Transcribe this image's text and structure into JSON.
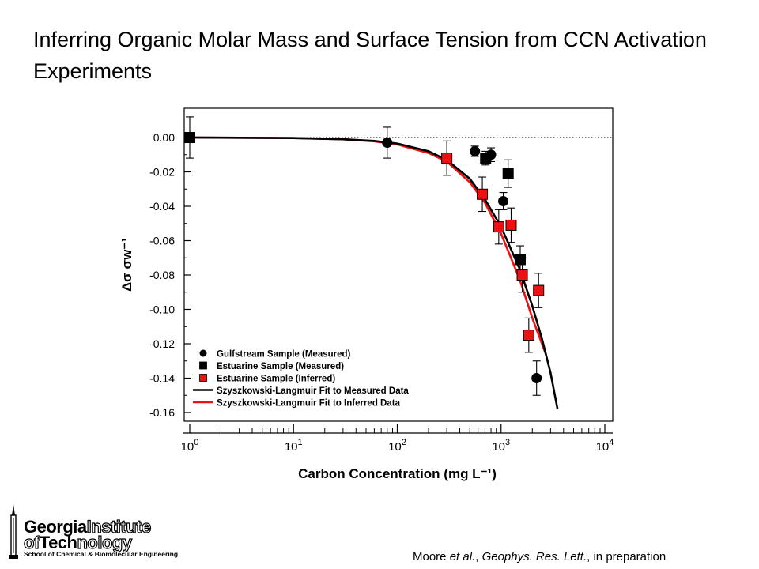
{
  "slide": {
    "title": "Inferring Organic Molar Mass and Surface Tension from CCN Activation Experiments",
    "citation": {
      "author": "Moore ",
      "etal": "et al.",
      "sep1": ", ",
      "journal": "Geophys. Res. Lett.",
      "sep2": ", in preparation"
    },
    "logo": {
      "georgia": "Georgia",
      "institute": "Institute",
      "of": "of",
      "tech": "Tech",
      "nology": "nology",
      "school": "School of Chemical & Biomolecular Engineering"
    }
  },
  "chart_data": {
    "type": "scatter",
    "title": "",
    "xlabel": "Carbon Concentration (mg L⁻¹)",
    "ylabel": "Δσ σw⁻¹",
    "x_scale": "log",
    "xlim": [
      1,
      10000
    ],
    "ylim": [
      -0.16,
      0.012
    ],
    "x_ticks": [
      {
        "value": 1,
        "base": "10",
        "exp": "0"
      },
      {
        "value": 10,
        "base": "10",
        "exp": "1"
      },
      {
        "value": 100,
        "base": "10",
        "exp": "2"
      },
      {
        "value": 1000,
        "base": "10",
        "exp": "3"
      },
      {
        "value": 10000,
        "base": "10",
        "exp": "4"
      }
    ],
    "y_ticks": [
      {
        "value": 0,
        "label": "0.00"
      },
      {
        "value": -0.02,
        "label": "-0.02"
      },
      {
        "value": -0.04,
        "label": "-0.04"
      },
      {
        "value": -0.06,
        "label": "-0.06"
      },
      {
        "value": -0.08,
        "label": "-0.08"
      },
      {
        "value": -0.1,
        "label": "-0.10"
      },
      {
        "value": -0.12,
        "label": "-0.12"
      },
      {
        "value": -0.14,
        "label": "-0.14"
      },
      {
        "value": -0.16,
        "label": "-0.16"
      }
    ],
    "reference_line": {
      "y": 0,
      "style": "dotted"
    },
    "legend": {
      "position": "bottom-left"
    },
    "series": [
      {
        "name": "Gulfstream Sample (Measured)",
        "kind": "points",
        "marker": "circle",
        "color": "#000000",
        "points": [
          {
            "x": 80,
            "y": -0.003,
            "err": 0.009
          },
          {
            "x": 560,
            "y": -0.008,
            "err": 0.003
          },
          {
            "x": 800,
            "y": -0.01,
            "err": 0.004
          },
          {
            "x": 1050,
            "y": -0.037,
            "err": 0.005
          },
          {
            "x": 2200,
            "y": -0.14,
            "err": 0.01
          }
        ]
      },
      {
        "name": "Estuarine Sample (Measured)",
        "kind": "points",
        "marker": "square",
        "color": "#000000",
        "points": [
          {
            "x": 1,
            "y": 0.0,
            "err": 0.012
          },
          {
            "x": 710,
            "y": -0.012,
            "err": 0.004
          },
          {
            "x": 1170,
            "y": -0.021,
            "err": 0.008
          },
          {
            "x": 1530,
            "y": -0.071,
            "err": 0.008
          }
        ]
      },
      {
        "name": "Estuarine Sample (Inferred)",
        "kind": "points",
        "marker": "square",
        "color": "#ee1111",
        "points": [
          {
            "x": 300,
            "y": -0.012,
            "err": 0.01
          },
          {
            "x": 660,
            "y": -0.033,
            "err": 0.01
          },
          {
            "x": 950,
            "y": -0.052,
            "err": 0.01
          },
          {
            "x": 1250,
            "y": -0.051,
            "err": 0.01
          },
          {
            "x": 1600,
            "y": -0.08,
            "err": 0.01
          },
          {
            "x": 1850,
            "y": -0.115,
            "err": 0.01
          },
          {
            "x": 2300,
            "y": -0.089,
            "err": 0.01
          }
        ]
      },
      {
        "name": "Szyszkowski-Langmuir Fit to Measured Data",
        "kind": "line",
        "color": "#000000",
        "points": [
          {
            "x": 1,
            "y": 0.0
          },
          {
            "x": 10,
            "y": -0.0003
          },
          {
            "x": 30,
            "y": -0.001
          },
          {
            "x": 60,
            "y": -0.002
          },
          {
            "x": 100,
            "y": -0.0035
          },
          {
            "x": 200,
            "y": -0.008
          },
          {
            "x": 300,
            "y": -0.013
          },
          {
            "x": 500,
            "y": -0.024
          },
          {
            "x": 700,
            "y": -0.036
          },
          {
            "x": 1000,
            "y": -0.052
          },
          {
            "x": 1500,
            "y": -0.076
          },
          {
            "x": 2000,
            "y": -0.098
          },
          {
            "x": 2500,
            "y": -0.118
          },
          {
            "x": 3000,
            "y": -0.137
          },
          {
            "x": 3500,
            "y": -0.158
          }
        ]
      },
      {
        "name": "Szyszkowski-Langmuir Fit to Inferred Data",
        "kind": "line",
        "color": "#ee1111",
        "points": [
          {
            "x": 1,
            "y": 0.0
          },
          {
            "x": 10,
            "y": -0.0003
          },
          {
            "x": 30,
            "y": -0.001
          },
          {
            "x": 60,
            "y": -0.0022
          },
          {
            "x": 100,
            "y": -0.004
          },
          {
            "x": 200,
            "y": -0.009
          },
          {
            "x": 300,
            "y": -0.014
          },
          {
            "x": 500,
            "y": -0.026
          },
          {
            "x": 700,
            "y": -0.038
          },
          {
            "x": 1000,
            "y": -0.056
          },
          {
            "x": 1500,
            "y": -0.082
          },
          {
            "x": 2000,
            "y": -0.105
          },
          {
            "x": 2700,
            "y": -0.126
          }
        ]
      }
    ]
  }
}
